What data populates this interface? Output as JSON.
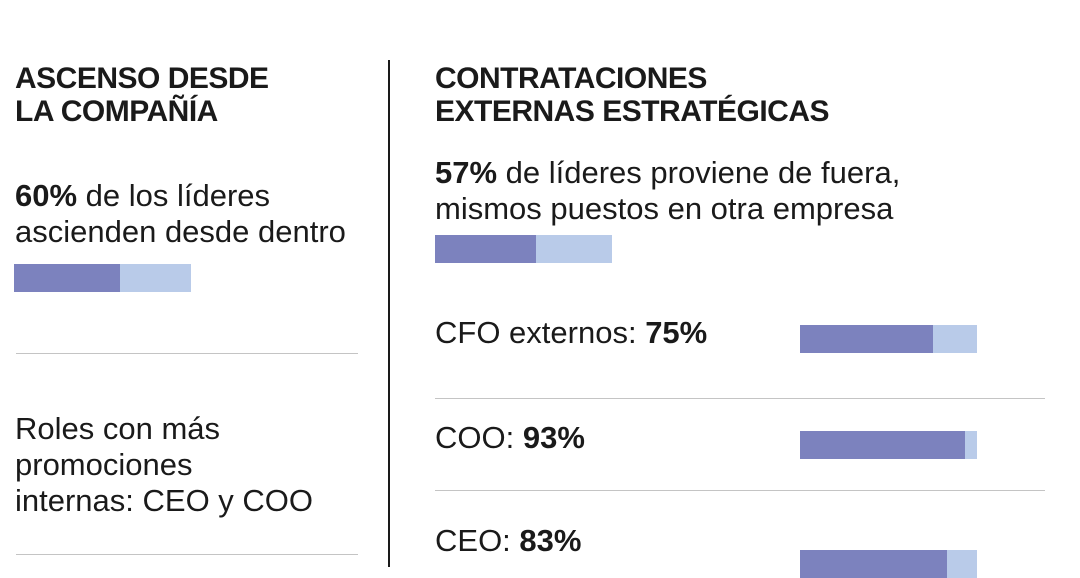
{
  "colors": {
    "fill": "#7c82be",
    "rest": "#b9cbe9",
    "text": "#1a1a1a",
    "rule": "#c4c4c4"
  },
  "left": {
    "heading_line1": "ASCENSO DESDE",
    "heading_line2": "LA COMPAÑÍA",
    "stat_value": "60%",
    "stat_text_1": " de los líderes",
    "stat_text_2": "ascienden desde dentro",
    "roles_line1": "Roles con más",
    "roles_line2": "promociones",
    "roles_line3": "internas: CEO y COO"
  },
  "right": {
    "heading_line1": "CONTRATACIONES",
    "heading_line2": "EXTERNAS ESTRATÉGICAS",
    "stat_value": "57%",
    "stat_text_1": " de líderes proviene de fuera,",
    "stat_text_2": "mismos puestos en otra empresa",
    "rows": [
      {
        "label": "CFO externos: ",
        "value": "75%"
      },
      {
        "label": "COO: ",
        "value": "93%"
      },
      {
        "label": "CEO: ",
        "value": "83%"
      }
    ]
  },
  "chart_data": {
    "type": "bar",
    "categories": [
      "ascienden desde dentro",
      "proviene de fuera",
      "CFO externos",
      "COO",
      "CEO"
    ],
    "values": [
      60,
      57,
      75,
      93,
      83
    ],
    "ylim": [
      0,
      100
    ]
  }
}
